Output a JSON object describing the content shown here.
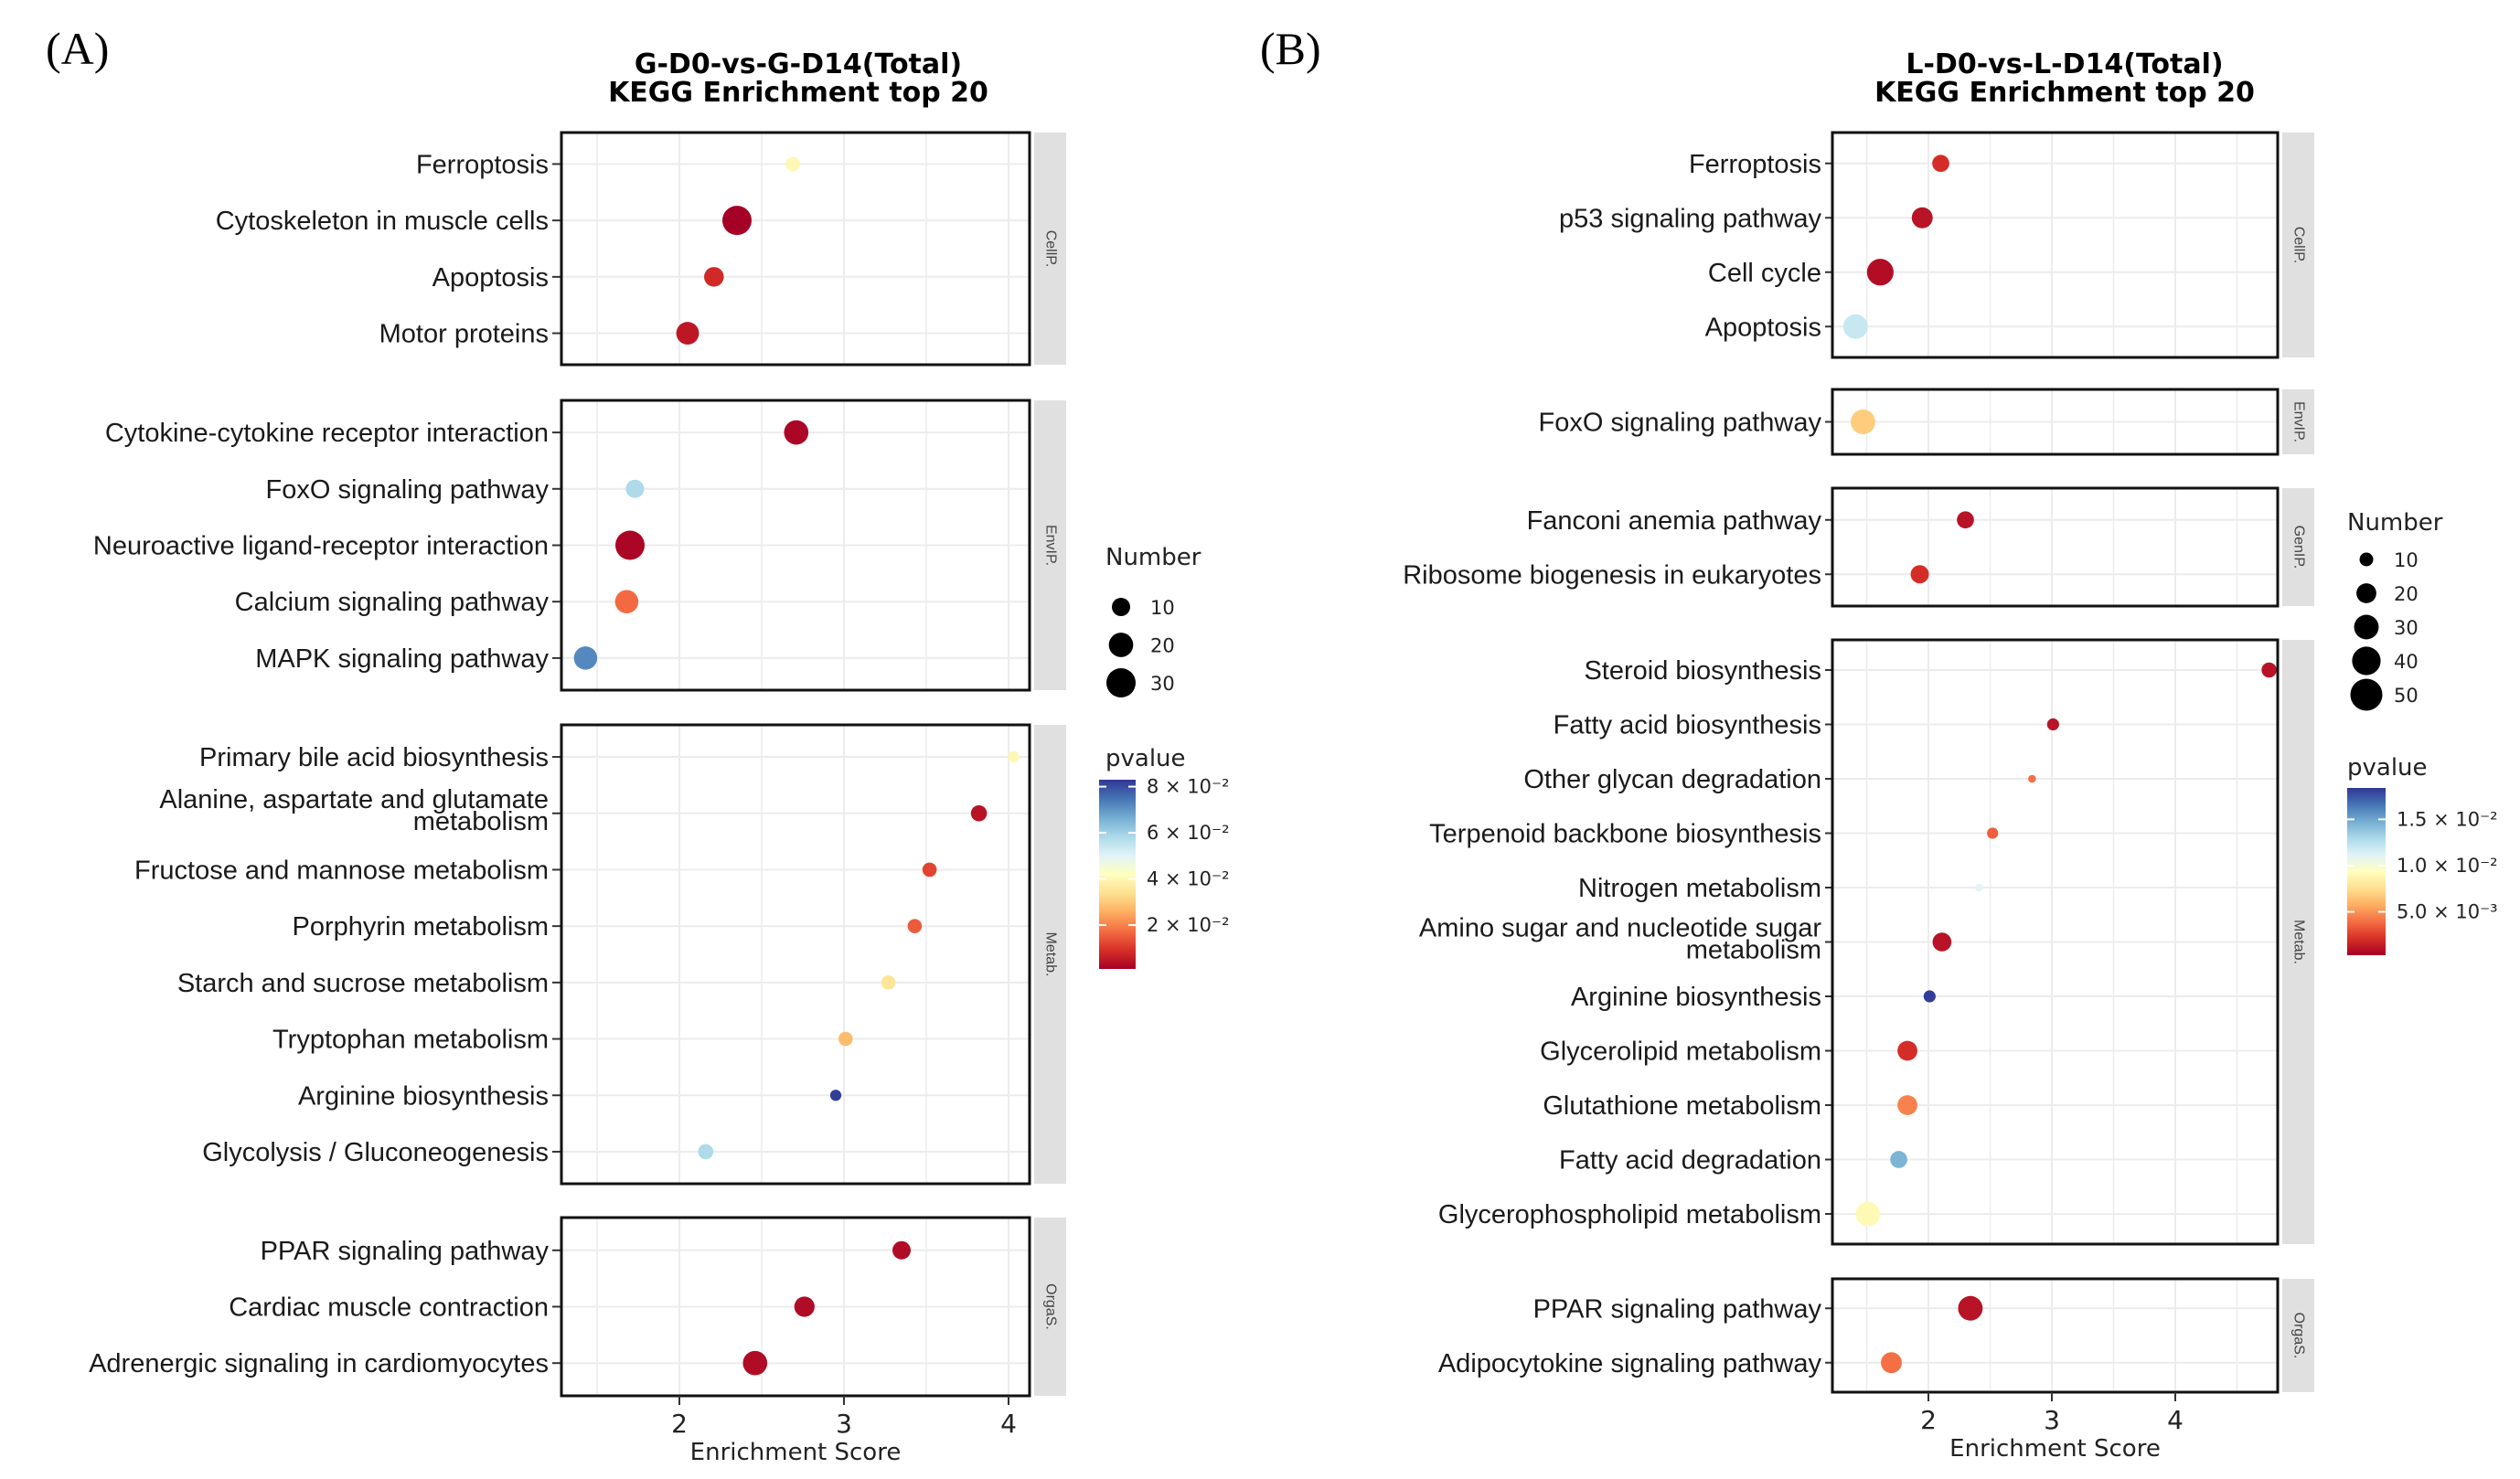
{
  "colors": {
    "low_p": "#a50026",
    "mid_p": "#ffffbf",
    "high_p": "#313695",
    "strip_bg": "#e0e0e0",
    "grid": "#ebebeb"
  },
  "chart_data": [
    {
      "panel_label": "(A)",
      "type": "scatter",
      "title": [
        "G-D0-vs-G-D14(Total)",
        "KEGG Enrichment top 20"
      ],
      "xlabel": "Enrichment Score",
      "xlim": [
        1.28,
        4.11
      ],
      "xticks": [
        "2",
        "3",
        "4"
      ],
      "xtick_values": [
        2,
        3,
        4
      ],
      "size_legend": {
        "title": "Number",
        "values": [
          10,
          20,
          30
        ],
        "labels": [
          "10",
          "20",
          "30"
        ]
      },
      "color_legend": {
        "title": "pvalue",
        "range": [
          0.001,
          0.083
        ],
        "tick_values": [
          0.08,
          0.06,
          0.04,
          0.02
        ],
        "labels": [
          "8 × 10⁻²",
          "6 × 10⁻²",
          "4 × 10⁻²",
          "2 × 10⁻²"
        ]
      },
      "facets": [
        {
          "name": "CellP.",
          "rows": [
            {
              "term": "Ferroptosis",
              "score": 2.69,
              "number": 5,
              "pvalue": 0.04
            },
            {
              "term": "Cytoskeleton in muscle cells",
              "score": 2.35,
              "number": 30,
              "pvalue": 0.001
            },
            {
              "term": "Apoptosis",
              "score": 2.21,
              "number": 12,
              "pvalue": 0.008
            },
            {
              "term": "Motor proteins",
              "score": 2.05,
              "number": 17,
              "pvalue": 0.005
            }
          ]
        },
        {
          "name": "EnvIP.",
          "rows": [
            {
              "term": "Cytokine-cytokine receptor interaction",
              "score": 2.71,
              "number": 20,
              "pvalue": 0.002
            },
            {
              "term": "FoxO signaling pathway",
              "score": 1.73,
              "number": 10,
              "pvalue": 0.058
            },
            {
              "term": "Neuroactive ligand-receptor interaction",
              "score": 1.7,
              "number": 30,
              "pvalue": 0.002
            },
            {
              "term": "Calcium signaling pathway",
              "score": 1.68,
              "number": 18,
              "pvalue": 0.017
            },
            {
              "term": "MAPK signaling pathway",
              "score": 1.43,
              "number": 18,
              "pvalue": 0.072
            }
          ]
        },
        {
          "name": "Metab.",
          "rows": [
            {
              "term": "Primary bile acid biosynthesis",
              "score": 4.03,
              "number": 2,
              "pvalue": 0.04
            },
            {
              "term": "Alanine, aspartate and glutamate\nmetabolism",
              "score": 3.82,
              "number": 7,
              "pvalue": 0.004
            },
            {
              "term": "Fructose and mannose metabolism",
              "score": 3.52,
              "number": 5,
              "pvalue": 0.012
            },
            {
              "term": "Porphyrin metabolism",
              "score": 3.43,
              "number": 5,
              "pvalue": 0.015
            },
            {
              "term": "Starch and sucrose metabolism",
              "score": 3.27,
              "number": 5,
              "pvalue": 0.035
            },
            {
              "term": "Tryptophan metabolism",
              "score": 3.01,
              "number": 5,
              "pvalue": 0.028
            },
            {
              "term": "Arginine biosynthesis",
              "score": 2.95,
              "number": 2,
              "pvalue": 0.082
            },
            {
              "term": "Glycolysis / Gluconeogenesis",
              "score": 2.16,
              "number": 6,
              "pvalue": 0.058
            }
          ]
        },
        {
          "name": "OrgaS.",
          "rows": [
            {
              "term": "PPAR signaling pathway",
              "score": 3.35,
              "number": 10,
              "pvalue": 0.003
            },
            {
              "term": "Cardiac muscle contraction",
              "score": 2.76,
              "number": 13,
              "pvalue": 0.003
            },
            {
              "term": "Adrenergic signaling in cardiomyocytes",
              "score": 2.46,
              "number": 20,
              "pvalue": 0.003
            }
          ]
        }
      ]
    },
    {
      "panel_label": "(B)",
      "type": "scatter",
      "title": [
        "L-D0-vs-L-D14(Total)",
        "KEGG Enrichment top 20"
      ],
      "xlabel": "Enrichment Score",
      "xlim": [
        1.22,
        4.89
      ],
      "xticks": [
        "2",
        "3",
        "4"
      ],
      "xtick_values": [
        2,
        3,
        4
      ],
      "size_legend": {
        "title": "Number",
        "values": [
          10,
          20,
          30,
          40,
          50
        ],
        "labels": [
          "10",
          "20",
          "30",
          "40",
          "50"
        ]
      },
      "color_legend": {
        "title": "pvalue",
        "range": [
          0.0003,
          0.0184
        ],
        "tick_values": [
          0.015,
          0.01,
          0.005
        ],
        "labels": [
          "1.5 × 10⁻²",
          "1.0 × 10⁻²",
          "5.0 × 10⁻³"
        ]
      },
      "facets": [
        {
          "name": "CellP.",
          "rows": [
            {
              "term": "Ferroptosis",
              "score": 2.1,
              "number": 15,
              "pvalue": 0.002
            },
            {
              "term": "p53 signaling pathway",
              "score": 1.95,
              "number": 22,
              "pvalue": 0.001
            },
            {
              "term": "Cell cycle",
              "score": 1.61,
              "number": 35,
              "pvalue": 0.0008
            },
            {
              "term": "Apoptosis",
              "score": 1.41,
              "number": 30,
              "pvalue": 0.012
            }
          ]
        },
        {
          "name": "EnvIP.",
          "rows": [
            {
              "term": "FoxO signaling pathway",
              "score": 1.47,
              "number": 30,
              "pvalue": 0.0068
            }
          ]
        },
        {
          "name": "GenIP.",
          "rows": [
            {
              "term": "Fanconi anemia pathway",
              "score": 2.3,
              "number": 15,
              "pvalue": 0.001
            },
            {
              "term": "Ribosome biogenesis in eukaryotes",
              "score": 1.93,
              "number": 17,
              "pvalue": 0.002
            }
          ]
        },
        {
          "name": "Metab.",
          "rows": [
            {
              "term": "Steroid biosynthesis",
              "score": 4.76,
              "number": 12,
              "pvalue": 0.001
            },
            {
              "term": "Fatty acid biosynthesis",
              "score": 3.01,
              "number": 8,
              "pvalue": 0.001
            },
            {
              "term": "Other glycan degradation",
              "score": 2.84,
              "number": 4,
              "pvalue": 0.004
            },
            {
              "term": "Terpenoid backbone biosynthesis",
              "score": 2.52,
              "number": 7,
              "pvalue": 0.0035
            },
            {
              "term": "Nitrogen metabolism",
              "score": 2.41,
              "number": 4,
              "pvalue": 0.011
            },
            {
              "term": "Amino sugar and nucleotide sugar\nmetabolism",
              "score": 2.11,
              "number": 18,
              "pvalue": 0.001
            },
            {
              "term": "Arginine biosynthesis",
              "score": 2.01,
              "number": 8,
              "pvalue": 0.0182
            },
            {
              "term": "Glycerolipid metabolism",
              "score": 1.83,
              "number": 20,
              "pvalue": 0.002
            },
            {
              "term": "Glutathione metabolism",
              "score": 1.83,
              "number": 20,
              "pvalue": 0.0045
            },
            {
              "term": "Fatty acid degradation",
              "score": 1.76,
              "number": 15,
              "pvalue": 0.0145
            },
            {
              "term": "Glycerophospholipid metabolism",
              "score": 1.51,
              "number": 30,
              "pvalue": 0.009
            }
          ]
        },
        {
          "name": "OrgaS.",
          "rows": [
            {
              "term": "PPAR signaling pathway",
              "score": 2.34,
              "number": 30,
              "pvalue": 0.001
            },
            {
              "term": "Adipocytokine signaling pathway",
              "score": 1.7,
              "number": 22,
              "pvalue": 0.004
            }
          ]
        }
      ]
    }
  ]
}
